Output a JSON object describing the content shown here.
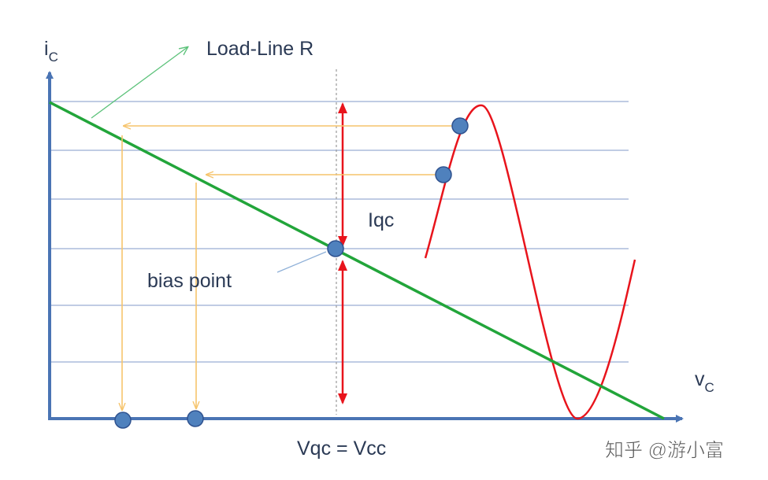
{
  "axes": {
    "y_label": {
      "main": "i",
      "sub": "C"
    },
    "x_label": {
      "main": "v",
      "sub": "C"
    }
  },
  "annotations": {
    "load_line": "Load-Line R",
    "current": "Iqc",
    "bias": "bias point",
    "voltage": "Vqc = Vcc"
  },
  "watermark": "知乎 @游小富"
}
